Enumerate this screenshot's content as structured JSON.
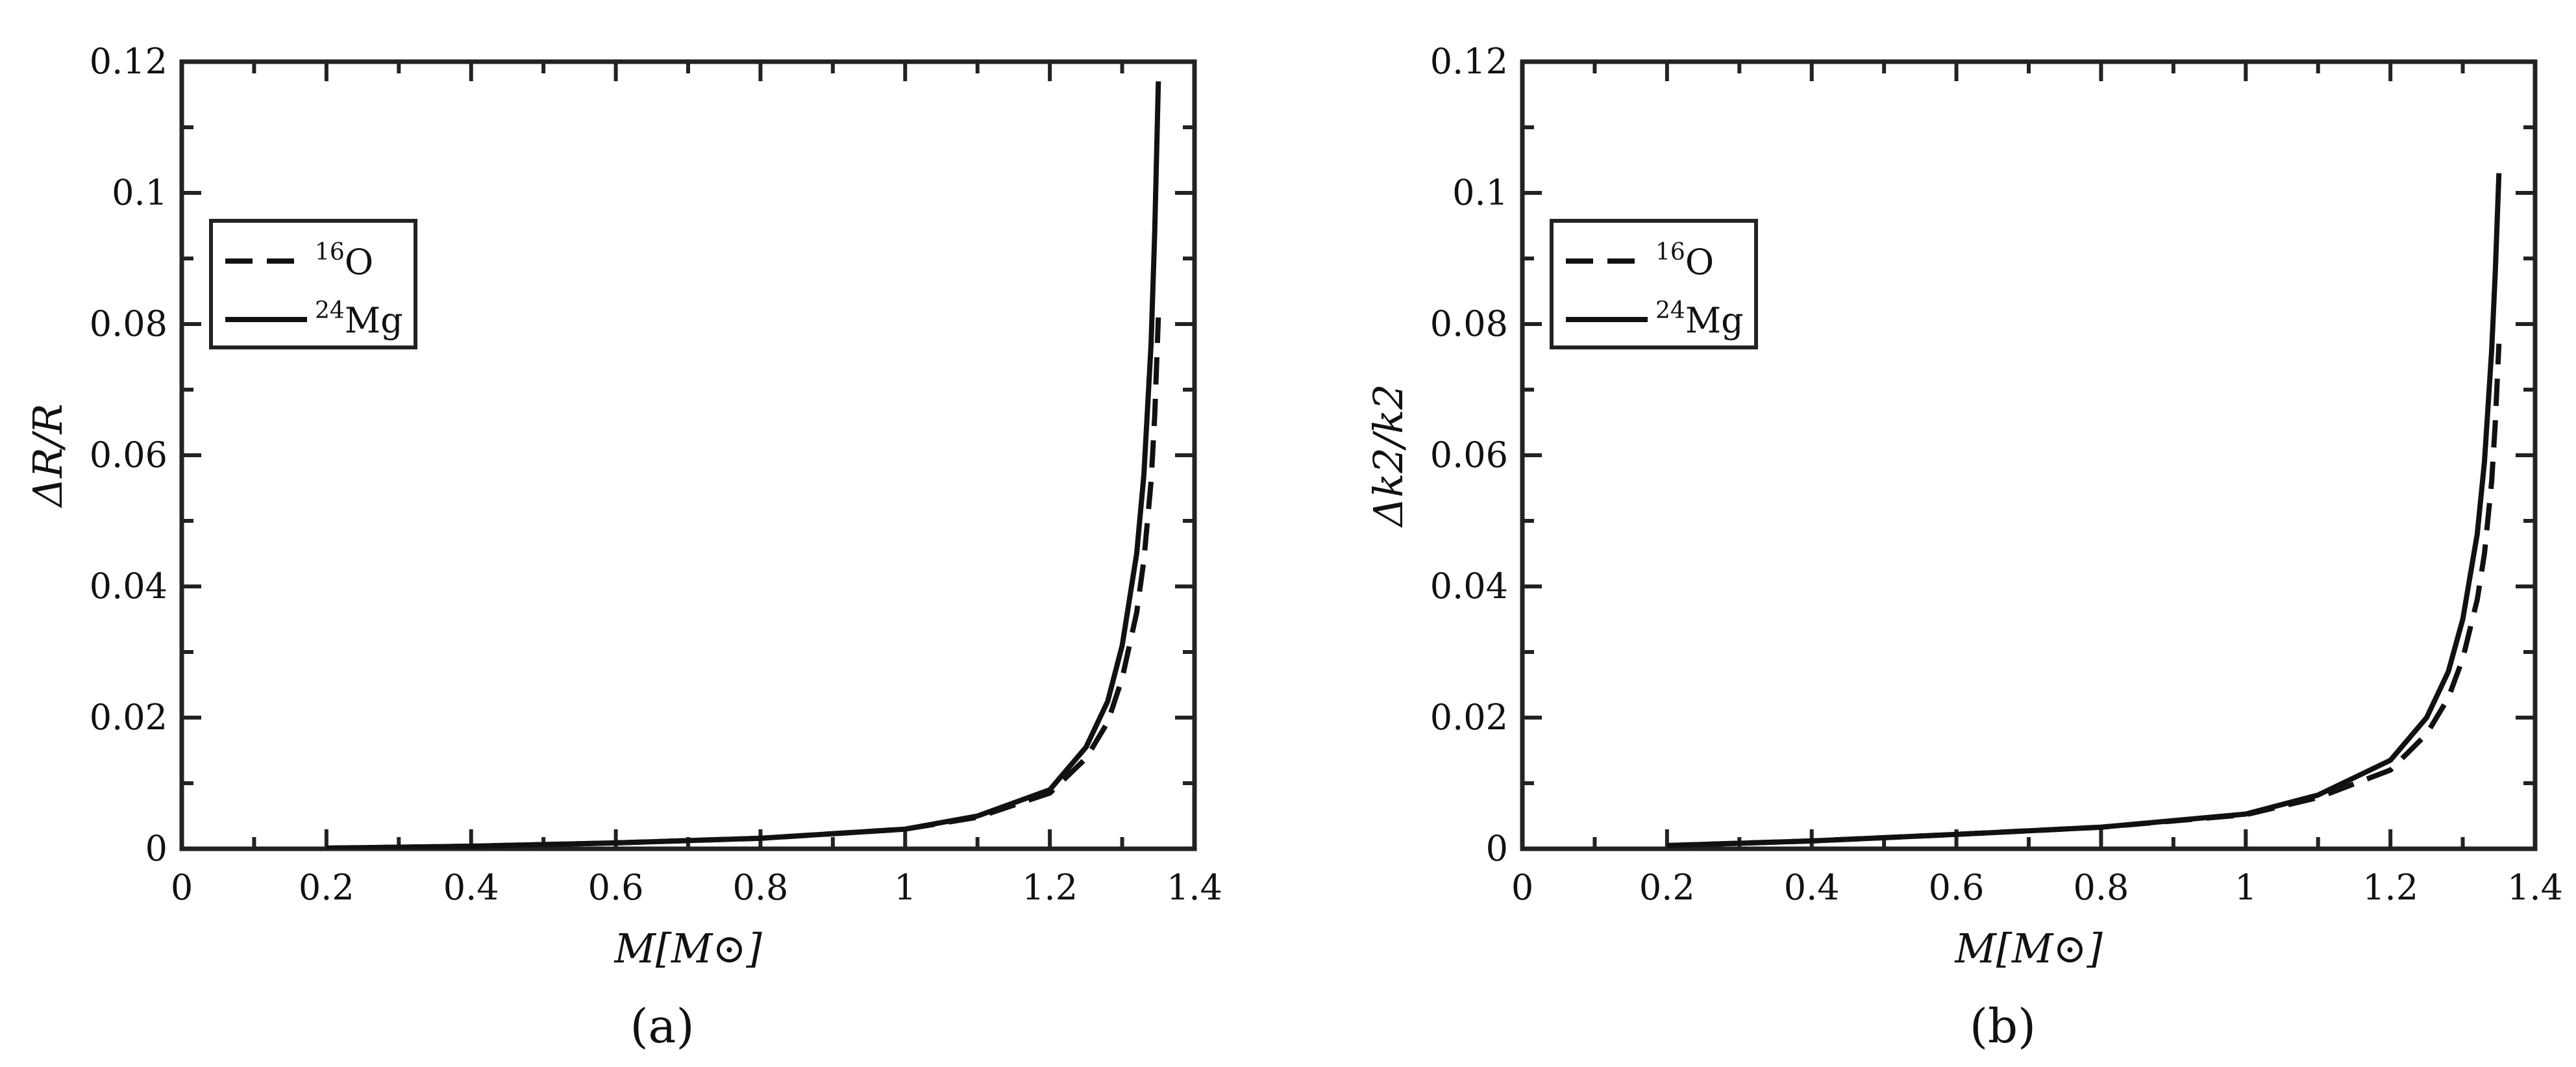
{
  "chart_data": [
    {
      "type": "line",
      "panel_label": "(a)",
      "xlabel": "M[M⊙]",
      "ylabel": "ΔR/R",
      "xlim": [
        0,
        1.4
      ],
      "ylim": [
        0,
        0.12
      ],
      "xticks": [
        "0",
        "0.2",
        "0.4",
        "0.6",
        "0.8",
        "1",
        "1.2",
        "1.4"
      ],
      "yticks": [
        "0",
        "0.02",
        "0.04",
        "0.06",
        "0.08",
        "0.1",
        "0.12"
      ],
      "legend": {
        "position": "upper-left"
      },
      "series": [
        {
          "name": "16O",
          "label_sup": "16",
          "label_base": "O",
          "style": "dashed",
          "x": [
            0.2,
            0.4,
            0.6,
            0.8,
            1.0,
            1.1,
            1.2,
            1.25,
            1.28,
            1.3,
            1.32,
            1.33,
            1.34,
            1.345,
            1.35
          ],
          "y": [
            0.0001,
            0.0004,
            0.0009,
            0.0016,
            0.003,
            0.0048,
            0.0085,
            0.0138,
            0.0193,
            0.026,
            0.036,
            0.044,
            0.056,
            0.066,
            0.081
          ]
        },
        {
          "name": "24Mg",
          "label_sup": "24",
          "label_base": "Mg",
          "style": "solid",
          "x": [
            0.2,
            0.4,
            0.6,
            0.8,
            1.0,
            1.1,
            1.2,
            1.25,
            1.28,
            1.3,
            1.32,
            1.33,
            1.34,
            1.345,
            1.35
          ],
          "y": [
            0.0001,
            0.0004,
            0.0009,
            0.0016,
            0.003,
            0.005,
            0.009,
            0.0155,
            0.0225,
            0.031,
            0.045,
            0.057,
            0.077,
            0.094,
            0.117
          ]
        }
      ]
    },
    {
      "type": "line",
      "panel_label": "(b)",
      "xlabel": "M[M⊙]",
      "ylabel": "Δk2/k2",
      "xlim": [
        0,
        1.4
      ],
      "ylim": [
        0,
        0.12
      ],
      "xticks": [
        "0",
        "0.2",
        "0.4",
        "0.6",
        "0.8",
        "1",
        "1.2",
        "1.4"
      ],
      "yticks": [
        "0",
        "0.02",
        "0.04",
        "0.06",
        "0.08",
        "0.1",
        "0.12"
      ],
      "legend": {
        "position": "upper-left"
      },
      "series": [
        {
          "name": "16O",
          "label_sup": "16",
          "label_base": "O",
          "style": "dashed",
          "x": [
            0.2,
            0.4,
            0.6,
            0.8,
            1.0,
            1.1,
            1.2,
            1.25,
            1.28,
            1.3,
            1.32,
            1.33,
            1.34,
            1.345,
            1.35
          ],
          "y": [
            0.0005,
            0.0012,
            0.0022,
            0.0033,
            0.0052,
            0.0078,
            0.012,
            0.0175,
            0.023,
            0.029,
            0.038,
            0.045,
            0.056,
            0.065,
            0.077
          ]
        },
        {
          "name": "24Mg",
          "label_sup": "24",
          "label_base": "Mg",
          "style": "solid",
          "x": [
            0.2,
            0.4,
            0.6,
            0.8,
            1.0,
            1.1,
            1.2,
            1.25,
            1.28,
            1.3,
            1.32,
            1.33,
            1.34,
            1.345,
            1.35
          ],
          "y": [
            0.0005,
            0.0012,
            0.0022,
            0.0033,
            0.0053,
            0.0082,
            0.0135,
            0.02,
            0.027,
            0.035,
            0.048,
            0.059,
            0.076,
            0.088,
            0.103
          ]
        }
      ]
    }
  ]
}
